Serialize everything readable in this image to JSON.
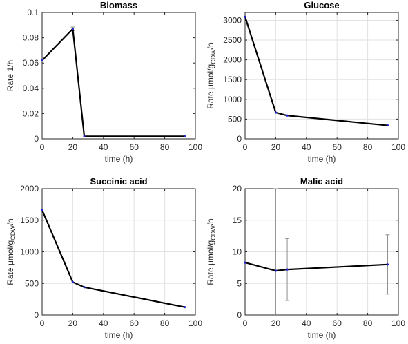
{
  "chart_data": [
    {
      "type": "line",
      "title": "Biomass",
      "xlabel": "time (h)",
      "ylabel": {
        "main": "Rate 1/h",
        "sub": "",
        "suffix": ""
      },
      "xlim": [
        0,
        100
      ],
      "ylim": [
        0,
        0.1
      ],
      "xticks": [
        "0",
        "20",
        "40",
        "60",
        "80",
        "100"
      ],
      "yticks": [
        "0",
        "0.02",
        "0.04",
        "0.06",
        "0.08",
        "0.1"
      ],
      "grid": false,
      "x": [
        0,
        20,
        27.5,
        93
      ],
      "y": [
        0.062,
        0.087,
        0.002,
        0.002
      ],
      "err": [
        0,
        0.0015,
        0,
        0
      ]
    },
    {
      "type": "line",
      "title": "Glucose",
      "xlabel": "time (h)",
      "ylabel": {
        "main": "Rate μmol/g",
        "sub": "CDW",
        "suffix": "/h"
      },
      "xlim": [
        0,
        100
      ],
      "ylim": [
        0,
        3200
      ],
      "xticks": [
        "0",
        "20",
        "40",
        "60",
        "80",
        "100"
      ],
      "yticks": [
        "0",
        "500",
        "1000",
        "1500",
        "2000",
        "2500",
        "3000"
      ],
      "grid": true,
      "x": [
        0,
        20,
        27.5,
        93
      ],
      "y": [
        3090,
        665,
        590,
        340
      ],
      "err": [
        0,
        0,
        0,
        0
      ]
    },
    {
      "type": "line",
      "title": "Succinic acid",
      "xlabel": "time (h)",
      "ylabel": {
        "main": "Rate μmol/g",
        "sub": "CDW",
        "suffix": "/h"
      },
      "xlim": [
        0,
        100
      ],
      "ylim": [
        0,
        2000
      ],
      "xticks": [
        "0",
        "20",
        "40",
        "60",
        "80",
        "100"
      ],
      "yticks": [
        "0",
        "500",
        "1000",
        "1500",
        "2000"
      ],
      "grid": true,
      "x": [
        0,
        20,
        27.5,
        93
      ],
      "y": [
        1660,
        520,
        440,
        125
      ],
      "err": [
        0,
        0,
        0,
        0
      ]
    },
    {
      "type": "line",
      "title": "Malic acid",
      "xlabel": "time (h)",
      "ylabel": {
        "main": "Rate μmol/g",
        "sub": "CDW",
        "suffix": "/h"
      },
      "xlim": [
        0,
        100
      ],
      "ylim": [
        0,
        20
      ],
      "xticks": [
        "0",
        "20",
        "40",
        "60",
        "80",
        "100"
      ],
      "yticks": [
        "0",
        "5",
        "10",
        "15",
        "20"
      ],
      "grid": true,
      "x": [
        0,
        20,
        27.5,
        93
      ],
      "y": [
        8.3,
        7.0,
        7.2,
        8.0
      ],
      "err": [
        0,
        13,
        4.9,
        4.7
      ]
    }
  ]
}
